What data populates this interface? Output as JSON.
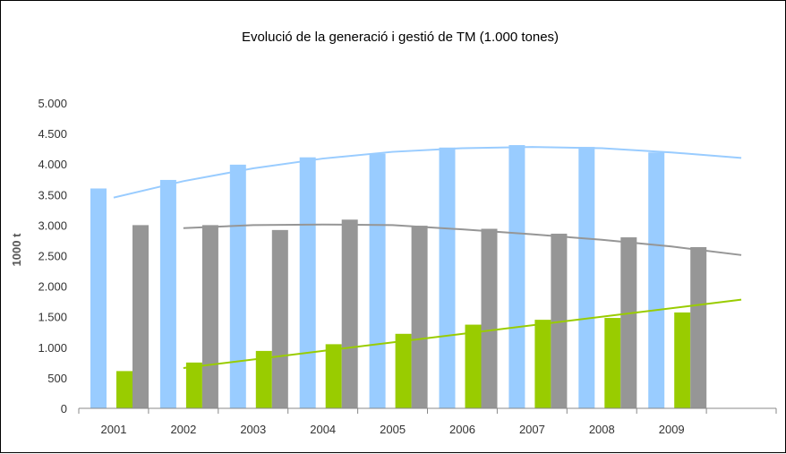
{
  "chart_data": {
    "type": "bar",
    "title": "Evolució de la generació i gestió de TM (1.000 tones)",
    "xlabel": "",
    "ylabel": "1000 t",
    "categories": [
      "2001",
      "2002",
      "2003",
      "2004",
      "2005",
      "2006",
      "2007",
      "2008",
      "2009"
    ],
    "ylim": [
      0,
      5000
    ],
    "yticks": [
      0,
      500,
      1000,
      1500,
      2000,
      2500,
      3000,
      3500,
      4000,
      4500,
      5000
    ],
    "ytick_labels": [
      "0",
      "500",
      "1.000",
      "1.500",
      "2.000",
      "2.500",
      "3.000",
      "3.500",
      "4.000",
      "4.500",
      "5.000"
    ],
    "grid": false,
    "legend": "none",
    "series": [
      {
        "color": "#99ccff",
        "values": [
          3600,
          3740,
          3990,
          4110,
          4170,
          4270,
          4310,
          4280,
          4190
        ]
      },
      {
        "color": "#99cc00",
        "values": [
          610,
          750,
          940,
          1050,
          1220,
          1370,
          1450,
          1480,
          1570
        ]
      },
      {
        "color": "#969696",
        "values": [
          3000,
          3000,
          2920,
          3090,
          2990,
          2940,
          2860,
          2800,
          2640
        ]
      }
    ],
    "trendlines": [
      {
        "series": 0,
        "color": "#99ccff",
        "x": [
          0.5,
          1.5,
          2.5,
          3.5,
          4.5,
          5.5,
          6.5,
          7.5,
          8.5,
          9.5
        ],
        "y": [
          3450,
          3720,
          3930,
          4090,
          4200,
          4260,
          4280,
          4260,
          4190,
          4100
        ]
      },
      {
        "series": 2,
        "color": "#969696",
        "x": [
          1.5,
          2.5,
          3.5,
          4.5,
          5.5,
          6.5,
          7.5,
          8.5,
          9.5
        ],
        "y": [
          2950,
          3000,
          3010,
          3000,
          2930,
          2850,
          2760,
          2650,
          2510
        ]
      },
      {
        "series": 1,
        "color": "#99cc00",
        "x": [
          1.5,
          9.5
        ],
        "y": [
          660,
          1780
        ]
      }
    ]
  }
}
